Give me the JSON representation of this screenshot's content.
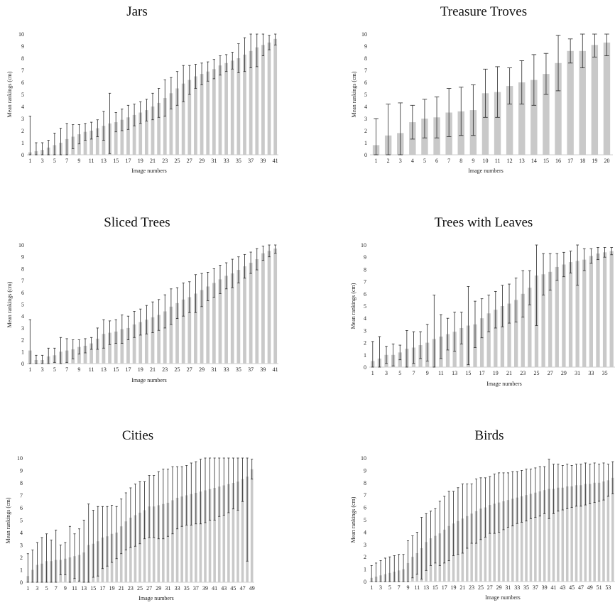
{
  "panels": [
    {
      "title": "Jars",
      "chart_data": {
        "type": "bar",
        "x": [
          1,
          2,
          3,
          4,
          5,
          6,
          7,
          8,
          9,
          10,
          11,
          12,
          13,
          14,
          15,
          16,
          17,
          18,
          19,
          20,
          21,
          22,
          23,
          24,
          25,
          26,
          27,
          28,
          29,
          30,
          31,
          32,
          33,
          34,
          35,
          36,
          37,
          38,
          39,
          40,
          41
        ],
        "x_tick_labels": [
          "1",
          "3",
          "5",
          "7",
          "9",
          "11",
          "13",
          "15",
          "17",
          "19",
          "21",
          "23",
          "25",
          "27",
          "29",
          "31",
          "33",
          "35",
          "37",
          "39",
          "41"
        ],
        "values": [
          0.2,
          0.3,
          0.4,
          0.6,
          0.8,
          1.0,
          1.3,
          1.5,
          1.7,
          1.9,
          2.0,
          2.2,
          2.4,
          2.6,
          2.7,
          2.9,
          3.1,
          3.3,
          3.5,
          3.7,
          4.0,
          4.3,
          4.7,
          5.1,
          5.5,
          5.9,
          6.2,
          6.5,
          6.7,
          6.9,
          7.1,
          7.4,
          7.6,
          7.8,
          8.0,
          8.3,
          8.6,
          8.9,
          9.1,
          9.3,
          9.6
        ],
        "errors": [
          3.0,
          0.7,
          0.6,
          0.6,
          1.0,
          1.2,
          1.3,
          1.0,
          0.8,
          0.7,
          0.7,
          0.7,
          1.2,
          2.5,
          0.8,
          0.9,
          1.0,
          0.9,
          0.9,
          0.9,
          1.1,
          1.2,
          1.5,
          1.3,
          1.4,
          1.5,
          1.2,
          1.0,
          0.9,
          0.8,
          0.8,
          0.8,
          0.7,
          0.7,
          1.2,
          1.4,
          1.4,
          1.6,
          0.9,
          0.6,
          0.5
        ],
        "xlabel": "Image numbers",
        "ylabel": "Mean rankings (cm)",
        "ylim": [
          0,
          10
        ],
        "y_ticks": [
          0,
          1,
          2,
          3,
          4,
          5,
          6,
          7,
          8,
          9,
          10
        ]
      }
    },
    {
      "title": "Treasure Troves",
      "chart_data": {
        "type": "bar",
        "x": [
          1,
          2,
          3,
          4,
          5,
          6,
          7,
          8,
          9,
          10,
          11,
          12,
          13,
          14,
          15,
          16,
          17,
          18,
          19,
          20
        ],
        "x_tick_labels": [
          "1",
          "2",
          "3",
          "4",
          "5",
          "6",
          "7",
          "8",
          "9",
          "10",
          "11",
          "12",
          "13",
          "14",
          "15",
          "16",
          "17",
          "18",
          "19",
          "20"
        ],
        "values": [
          0.8,
          1.6,
          1.8,
          2.7,
          3.0,
          3.1,
          3.5,
          3.6,
          3.7,
          5.1,
          5.2,
          5.7,
          6.0,
          6.2,
          6.7,
          7.6,
          8.6,
          8.6,
          9.1,
          9.3
        ],
        "errors": [
          2.2,
          2.6,
          2.5,
          1.4,
          1.6,
          1.7,
          2.0,
          2.0,
          2.1,
          2.0,
          2.1,
          1.5,
          1.8,
          2.1,
          1.7,
          2.3,
          1.0,
          1.4,
          1.0,
          1.1
        ],
        "xlabel": "Image numbers",
        "ylabel": "Mean rankings (cm)",
        "ylim": [
          0,
          10
        ],
        "y_ticks": [
          0,
          1,
          2,
          3,
          4,
          5,
          6,
          7,
          8,
          9,
          10
        ]
      }
    },
    {
      "title": "Sliced Trees",
      "chart_data": {
        "type": "bar",
        "x": [
          1,
          2,
          3,
          4,
          5,
          6,
          7,
          8,
          9,
          10,
          11,
          12,
          13,
          14,
          15,
          16,
          17,
          18,
          19,
          20,
          21,
          22,
          23,
          24,
          25,
          26,
          27,
          28,
          29,
          30,
          31,
          32,
          33,
          34,
          35,
          36,
          37,
          38,
          39,
          40,
          41
        ],
        "x_tick_labels": [
          "1",
          "3",
          "5",
          "7",
          "9",
          "11",
          "13",
          "15",
          "17",
          "19",
          "21",
          "23",
          "25",
          "27",
          "29",
          "31",
          "33",
          "35",
          "37",
          "39",
          "41"
        ],
        "values": [
          1.1,
          0.3,
          0.3,
          0.6,
          0.7,
          1.0,
          1.1,
          1.2,
          1.4,
          1.5,
          1.7,
          2.1,
          2.5,
          2.6,
          2.7,
          2.9,
          3.0,
          3.3,
          3.5,
          3.7,
          3.9,
          4.1,
          4.4,
          4.8,
          5.1,
          5.4,
          5.6,
          5.9,
          6.2,
          6.5,
          6.8,
          7.1,
          7.4,
          7.6,
          7.9,
          8.2,
          8.5,
          8.8,
          9.3,
          9.5,
          9.7
        ],
        "errors": [
          2.6,
          0.4,
          0.4,
          0.7,
          0.6,
          1.2,
          1.0,
          0.8,
          0.6,
          0.6,
          0.5,
          0.9,
          1.2,
          1.0,
          1.0,
          1.2,
          1.0,
          1.1,
          1.1,
          1.2,
          1.3,
          1.3,
          1.4,
          1.5,
          1.3,
          1.4,
          1.3,
          1.6,
          1.4,
          1.2,
          1.2,
          1.2,
          1.1,
          1.2,
          1.1,
          1.0,
          0.9,
          0.9,
          0.6,
          0.5,
          0.4
        ],
        "xlabel": "Image numbers",
        "ylabel": "Mean rankings (cm)",
        "ylim": [
          0,
          10
        ],
        "y_ticks": [
          0,
          1,
          2,
          3,
          4,
          5,
          6,
          7,
          8,
          9,
          10
        ]
      }
    },
    {
      "title": "Trees with Leaves",
      "chart_data": {
        "type": "bar",
        "x": [
          1,
          2,
          3,
          4,
          5,
          6,
          7,
          8,
          9,
          10,
          11,
          12,
          13,
          14,
          15,
          16,
          17,
          18,
          19,
          20,
          21,
          22,
          23,
          24,
          25,
          26,
          27,
          28,
          29,
          30,
          31,
          32,
          33,
          34,
          35,
          36
        ],
        "x_tick_labels": [
          "1",
          "3",
          "5",
          "7",
          "9",
          "11",
          "13",
          "15",
          "17",
          "19",
          "21",
          "23",
          "25",
          "27",
          "29",
          "31",
          "33",
          "35"
        ],
        "values": [
          0.5,
          0.7,
          1.0,
          1.0,
          1.2,
          1.5,
          1.6,
          1.8,
          2.0,
          2.3,
          2.5,
          2.7,
          2.9,
          3.2,
          3.4,
          3.5,
          4.0,
          4.4,
          4.7,
          5.0,
          5.2,
          5.5,
          6.0,
          6.5,
          7.5,
          7.6,
          7.8,
          8.2,
          8.4,
          8.6,
          8.7,
          8.8,
          9.1,
          9.3,
          9.4,
          9.5
        ],
        "errors": [
          1.6,
          1.8,
          0.7,
          0.9,
          0.6,
          1.5,
          1.3,
          1.1,
          1.5,
          3.6,
          1.8,
          1.3,
          1.6,
          1.3,
          3.2,
          1.9,
          1.6,
          1.5,
          1.5,
          1.7,
          1.6,
          1.8,
          1.9,
          1.4,
          4.1,
          1.7,
          1.5,
          1.1,
          1.0,
          0.9,
          2.0,
          0.9,
          0.6,
          0.5,
          0.4,
          0.3
        ],
        "xlabel": "Image numbers",
        "ylabel": "Mean rankings (cm)",
        "ylim": [
          0,
          10
        ],
        "y_ticks": [
          0,
          1,
          2,
          3,
          4,
          5,
          6,
          7,
          8,
          9,
          10
        ]
      }
    },
    {
      "title": "Cities",
      "chart_data": {
        "type": "bar",
        "x": [
          1,
          2,
          3,
          4,
          5,
          6,
          7,
          8,
          9,
          10,
          11,
          12,
          13,
          14,
          15,
          16,
          17,
          18,
          19,
          20,
          21,
          22,
          23,
          24,
          25,
          26,
          27,
          28,
          29,
          30,
          31,
          32,
          33,
          34,
          35,
          36,
          37,
          38,
          39,
          40,
          41,
          42,
          43,
          44,
          45,
          46,
          47,
          48,
          49
        ],
        "x_tick_labels": [
          "1",
          "3",
          "5",
          "7",
          "9",
          "11",
          "13",
          "15",
          "17",
          "19",
          "21",
          "23",
          "25",
          "27",
          "29",
          "31",
          "33",
          "35",
          "37",
          "39",
          "41",
          "43",
          "45",
          "47",
          "49"
        ],
        "values": [
          0.5,
          1.0,
          1.4,
          1.5,
          1.7,
          1.7,
          1.8,
          1.8,
          1.9,
          2.0,
          2.1,
          2.2,
          2.4,
          3.0,
          3.1,
          3.3,
          3.6,
          3.7,
          3.9,
          4.0,
          4.5,
          4.9,
          5.2,
          5.4,
          5.6,
          5.8,
          6.1,
          6.1,
          6.2,
          6.3,
          6.4,
          6.6,
          6.8,
          6.9,
          7.0,
          7.1,
          7.2,
          7.3,
          7.4,
          7.5,
          7.6,
          7.7,
          7.8,
          7.9,
          8.0,
          8.1,
          8.3,
          8.5,
          9.1
        ],
        "errors": [
          1.8,
          1.6,
          1.8,
          2.1,
          2.2,
          1.7,
          2.4,
          1.2,
          1.3,
          2.5,
          1.8,
          2.1,
          2.6,
          3.3,
          2.7,
          2.8,
          2.5,
          2.4,
          2.3,
          2.1,
          2.2,
          2.3,
          2.4,
          2.5,
          2.5,
          2.3,
          2.5,
          2.5,
          2.7,
          2.8,
          2.7,
          2.7,
          2.5,
          2.4,
          2.4,
          2.5,
          2.5,
          2.6,
          2.6,
          2.5,
          2.6,
          2.4,
          2.4,
          2.3,
          2.1,
          2.3,
          1.8,
          6.8,
          0.8
        ],
        "xlabel": "Image numbers",
        "ylabel": "Mean rankings (cm)",
        "ylim": [
          0,
          10
        ],
        "y_ticks": [
          0,
          1,
          2,
          3,
          4,
          5,
          6,
          7,
          8,
          9,
          10
        ]
      }
    },
    {
      "title": "Birds",
      "chart_data": {
        "type": "bar",
        "x": [
          1,
          2,
          3,
          4,
          5,
          6,
          7,
          8,
          9,
          10,
          11,
          12,
          13,
          14,
          15,
          16,
          17,
          18,
          19,
          20,
          21,
          22,
          23,
          24,
          25,
          26,
          27,
          28,
          29,
          30,
          31,
          32,
          33,
          34,
          35,
          36,
          37,
          38,
          39,
          40,
          41,
          42,
          43,
          44,
          45,
          46,
          47,
          48,
          49,
          50,
          51,
          52,
          53,
          54
        ],
        "x_tick_labels": [
          "1",
          "3",
          "5",
          "7",
          "9",
          "11",
          "13",
          "15",
          "17",
          "19",
          "21",
          "23",
          "25",
          "27",
          "29",
          "31",
          "33",
          "35",
          "37",
          "39",
          "41",
          "43",
          "45",
          "47",
          "49",
          "51",
          "53"
        ],
        "values": [
          0.3,
          0.4,
          0.5,
          0.6,
          0.7,
          0.8,
          0.9,
          1.0,
          1.5,
          2.0,
          2.3,
          2.7,
          3.2,
          3.5,
          3.7,
          3.9,
          4.2,
          4.5,
          4.7,
          4.9,
          5.1,
          5.3,
          5.5,
          5.7,
          5.9,
          6.0,
          6.2,
          6.3,
          6.4,
          6.5,
          6.6,
          6.7,
          6.8,
          6.9,
          7.0,
          7.1,
          7.2,
          7.3,
          7.4,
          7.5,
          7.5,
          7.6,
          7.6,
          7.7,
          7.7,
          7.8,
          7.8,
          7.9,
          7.9,
          8.0,
          8.0,
          8.1,
          8.2,
          8.4
        ],
        "errors": [
          1.0,
          1.1,
          1.2,
          1.3,
          1.3,
          1.3,
          1.3,
          1.2,
          1.8,
          1.7,
          1.7,
          2.5,
          2.3,
          2.2,
          2.2,
          2.6,
          2.7,
          2.8,
          2.6,
          2.7,
          2.8,
          2.6,
          2.4,
          2.6,
          2.5,
          2.4,
          2.3,
          2.4,
          2.4,
          2.3,
          2.2,
          2.2,
          2.1,
          2.1,
          2.1,
          2.0,
          2.0,
          2.0,
          1.9,
          2.4,
          2.0,
          1.9,
          1.8,
          1.8,
          1.7,
          1.7,
          1.7,
          1.7,
          1.6,
          1.6,
          1.5,
          1.5,
          1.3,
          1.3
        ],
        "xlabel": "Image numbers",
        "ylabel": "Mean rankings (cm)",
        "ylim": [
          0,
          10
        ],
        "y_ticks": [
          0,
          1,
          2,
          3,
          4,
          5,
          6,
          7,
          8,
          9,
          10
        ]
      }
    }
  ],
  "colors": {
    "bar": "#c9c9c9",
    "error_bar": "#2a2a2a",
    "axis": "#cfcfcf",
    "text": "#222222"
  }
}
